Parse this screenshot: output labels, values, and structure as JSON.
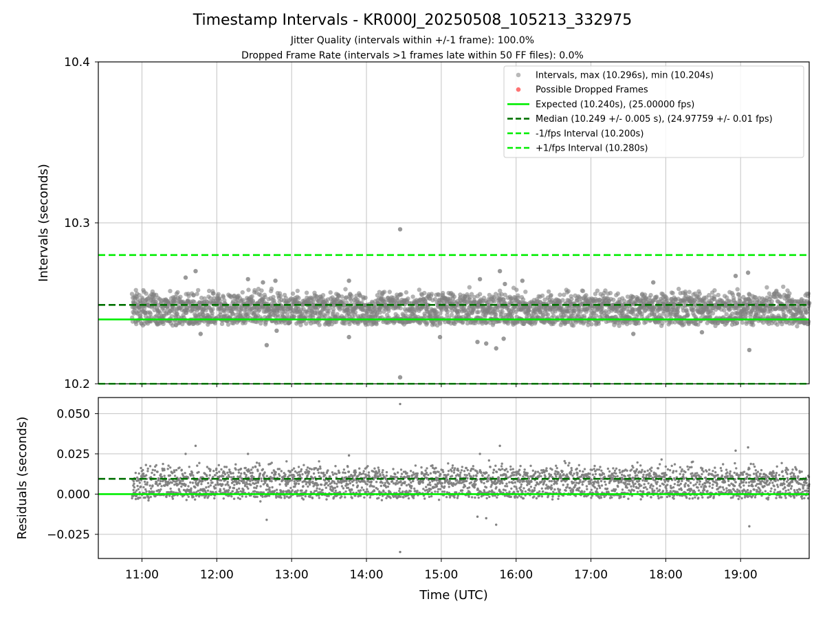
{
  "chart_data": [
    {
      "type": "scatter",
      "panel": "intervals",
      "title": "Timestamp Intervals - KR000J_20250508_105213_332975",
      "subtitle_lines": [
        "Jitter Quality (intervals within +/-1 frame): 100.0%",
        "Dropped Frame Rate (intervals >1 frames late within 50 FF files): 0.0%"
      ],
      "ylabel": "Intervals (seconds)",
      "xlabel": "",
      "ylim": [
        10.2,
        10.4
      ],
      "xlim": [
        "10:25",
        "19:55"
      ],
      "yticks": [
        "10.2",
        "10.3",
        "10.4"
      ],
      "grid": true,
      "legend_position": "top-right",
      "legend": [
        {
          "label": "Intervals, max (10.296s), min (10.204s)",
          "kind": "point",
          "color": "#808080"
        },
        {
          "label": "Possible Dropped Frames",
          "kind": "point",
          "color": "#ff0000"
        },
        {
          "label": "Expected (10.240s), (25.00000 fps)",
          "kind": "solid",
          "color": "#00ee00"
        },
        {
          "label": "Median (10.249 +/- 0.005 s), (24.97759 +/- 0.01 fps)",
          "kind": "dashed",
          "color": "#007000"
        },
        {
          "label": "-1/fps Interval (10.200s)",
          "kind": "dashed",
          "color": "#00ee00"
        },
        {
          "label": "+1/fps Interval (10.280s)",
          "kind": "dashed",
          "color": "#00ee00"
        }
      ],
      "reference_lines": [
        {
          "name": "Expected",
          "y": 10.24,
          "style": "solid",
          "color": "#00ee00"
        },
        {
          "name": "Median",
          "y": 10.249,
          "style": "dashed",
          "color": "#007000"
        },
        {
          "name": "-1/fps Interval",
          "y": 10.2,
          "style": "dashed",
          "color": "#00ee00"
        },
        {
          "name": "+1/fps Interval",
          "y": 10.28,
          "style": "dashed",
          "color": "#00ee00"
        }
      ],
      "points": {
        "x_start": "10:52",
        "x_end": "19:55",
        "interval_s": 10.24,
        "count": 3183,
        "bands": [
          {
            "center": 10.249,
            "spread": 0.004,
            "share": 0.7
          },
          {
            "center": 10.2395,
            "spread": 0.0015,
            "share": 0.3
          }
        ],
        "max": 10.296,
        "min": 10.204,
        "outliers": [
          {
            "x": "14:27",
            "y": 10.296
          },
          {
            "x": "14:27",
            "y": 10.204
          },
          {
            "x": "11:43",
            "y": 10.27
          },
          {
            "x": "15:47",
            "y": 10.27
          },
          {
            "x": "19:06",
            "y": 10.269
          },
          {
            "x": "18:56",
            "y": 10.267
          },
          {
            "x": "11:35",
            "y": 10.266
          },
          {
            "x": "12:25",
            "y": 10.265
          },
          {
            "x": "15:31",
            "y": 10.265
          },
          {
            "x": "13:46",
            "y": 10.264
          },
          {
            "x": "16:05",
            "y": 10.264
          },
          {
            "x": "12:47",
            "y": 10.264
          },
          {
            "x": "17:50",
            "y": 10.263
          },
          {
            "x": "15:51",
            "y": 10.262
          },
          {
            "x": "12:37",
            "y": 10.263
          },
          {
            "x": "12:40",
            "y": 10.224
          },
          {
            "x": "15:44",
            "y": 10.222
          },
          {
            "x": "19:07",
            "y": 10.221
          },
          {
            "x": "15:36",
            "y": 10.225
          },
          {
            "x": "15:29",
            "y": 10.226
          },
          {
            "x": "15:50",
            "y": 10.228
          },
          {
            "x": "14:59",
            "y": 10.229
          },
          {
            "x": "13:46",
            "y": 10.229
          },
          {
            "x": "11:47",
            "y": 10.231
          },
          {
            "x": "17:34",
            "y": 10.231
          },
          {
            "x": "18:29",
            "y": 10.232
          },
          {
            "x": "12:48",
            "y": 10.233
          }
        ]
      }
    },
    {
      "type": "scatter",
      "panel": "residuals",
      "xlabel": "Time (UTC)",
      "ylabel": "Residuals (seconds)",
      "ylim": [
        -0.04,
        0.06
      ],
      "yticks": [
        "0.050",
        "0.025",
        "0.000",
        "−0.025"
      ],
      "xticks": [
        "11:00",
        "12:00",
        "13:00",
        "14:00",
        "15:00",
        "16:00",
        "17:00",
        "18:00",
        "19:00"
      ],
      "grid": true,
      "reference_lines": [
        {
          "name": "Expected",
          "y": 0.0,
          "style": "solid",
          "color": "#00ee00"
        },
        {
          "name": "Median",
          "y": 0.0095,
          "style": "dashed",
          "color": "#007000"
        }
      ],
      "points": {
        "x_start": "10:52",
        "x_end": "19:55",
        "count": 3183,
        "bands": [
          {
            "center": 0.0095,
            "spread": 0.004,
            "share": 0.7
          },
          {
            "center": 0.0,
            "spread": 0.0015,
            "share": 0.3
          }
        ],
        "outliers": [
          {
            "x": "14:27",
            "y": 0.056
          },
          {
            "x": "14:27",
            "y": -0.036
          },
          {
            "x": "11:43",
            "y": 0.03
          },
          {
            "x": "15:47",
            "y": 0.03
          },
          {
            "x": "19:06",
            "y": 0.029
          },
          {
            "x": "18:56",
            "y": 0.027
          },
          {
            "x": "11:35",
            "y": 0.025
          },
          {
            "x": "12:25",
            "y": 0.025
          },
          {
            "x": "15:31",
            "y": 0.025
          },
          {
            "x": "13:46",
            "y": 0.024
          },
          {
            "x": "12:40",
            "y": -0.016
          },
          {
            "x": "15:44",
            "y": -0.019
          },
          {
            "x": "19:07",
            "y": -0.02
          },
          {
            "x": "15:36",
            "y": -0.015
          },
          {
            "x": "15:29",
            "y": -0.014
          }
        ]
      }
    }
  ]
}
